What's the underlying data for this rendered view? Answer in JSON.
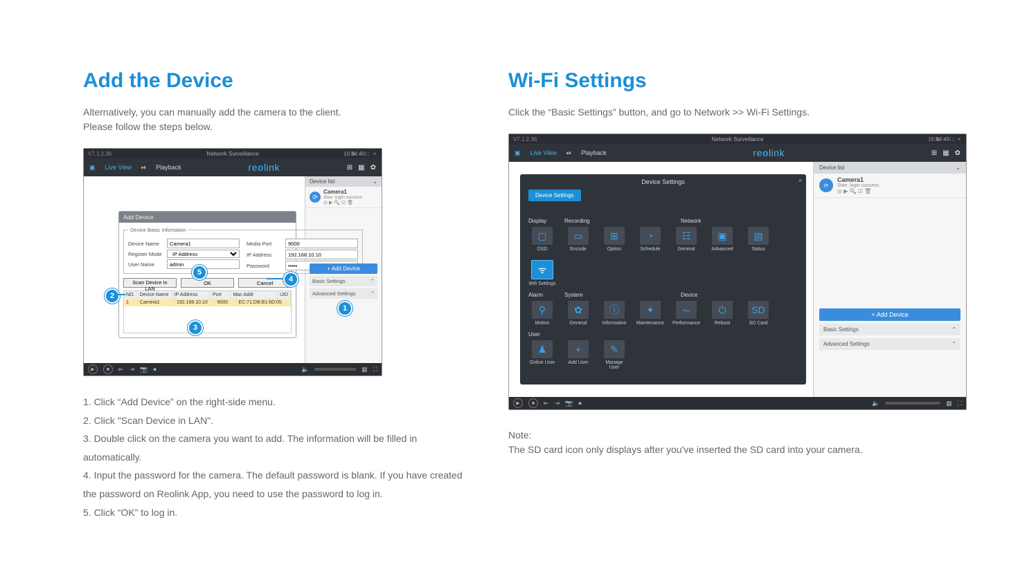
{
  "accent_color": "#1c8fd6",
  "left": {
    "heading": "Add the Device",
    "lead": "Alternatively, you can manually add the camera to the client.\nPlease follow the steps below.",
    "app": {
      "version": "V7.1.2.36",
      "title": "Network Surveillance",
      "time": "16:54:49",
      "menu_live": "Live View",
      "menu_playback": "Playback",
      "logo": "reolink",
      "sidebar": {
        "header": "Device list",
        "camera": {
          "name": "Camera1",
          "status": "Stae: login success"
        },
        "add_btn": "+  Add Device",
        "basic": "Basic Settings",
        "advanced": "Advanced Settings"
      },
      "dialog": {
        "title": "Add Device",
        "legend": "Device Basic Infomation",
        "device_name_lbl": "Device Name",
        "device_name": "Camera1",
        "register_lbl": "Register Mode",
        "register": "IP Address",
        "user_lbl": "User Name",
        "user": "admin",
        "media_lbl": "Media Port",
        "media": "9000",
        "ip_lbl": "IP Address",
        "ip": "192.168.10.10",
        "pwd_lbl": "Password",
        "pwd": "•••••",
        "scan_btn": "Scan Device In LAN",
        "ok_btn": "OK",
        "cancel_btn": "Cancel",
        "table": {
          "headers": [
            "NO.",
            "Device Name",
            "IP Address",
            "Port",
            "Mac Addr",
            "UID"
          ],
          "row": [
            "1",
            "Camera1",
            "192.168.10.10",
            "9000",
            "EC:71:DB:B1:6D:05",
            ""
          ]
        }
      }
    },
    "markers": {
      "1": "1",
      "2": "2",
      "3": "3",
      "4": "4",
      "5": "5"
    },
    "steps": [
      "1. Click “Add Device” on the right-side menu.",
      "2. Click \"Scan Device in LAN\".",
      "3. Double click on the camera you want to add. The information will be filled in automatically.",
      "4. Input the password for the camera. The default password is blank. If you have created",
      "the password on Reolink App, you need to use the password to log in.",
      "5. Click “OK” to log in."
    ]
  },
  "right": {
    "heading": "Wi-Fi Settings",
    "lead": "Click the “Basic Settings” button, and go to Network >> Wi-Fi Settings.",
    "app": {
      "version": "V7.1.2.36",
      "title": "Network Surveillance",
      "time": "16:54:49",
      "menu_live": "Live View",
      "menu_playback": "Playback",
      "logo": "reolink",
      "sidebar": {
        "header": "Device list",
        "camera": {
          "name": "Camera1",
          "status": "Stae: login success"
        },
        "add_btn": "+  Add Device",
        "basic": "Basic Settings",
        "advanced": "Advanced Settings"
      },
      "modal": {
        "title": "Device Settings",
        "tab": "Device Settings",
        "groups": [
          {
            "label_a": "Display",
            "label_b": "Recording",
            "label_c": "Network",
            "items": [
              {
                "i": "▢",
                "t": "OSD"
              },
              {
                "i": "▭",
                "t": "Encode"
              },
              {
                "i": "⊞",
                "t": "Option"
              },
              {
                "i": "◔",
                "t": "Schedule"
              },
              {
                "i": "☷",
                "t": "General"
              },
              {
                "i": "▣",
                "t": "Advanced"
              },
              {
                "i": "▤",
                "t": "Status"
              },
              {
                "i": "ᯤ",
                "t": "Wifi Settings",
                "sel": true
              }
            ]
          },
          {
            "label_a": "Alarm",
            "label_b": "System",
            "label_c": "Device",
            "items": [
              {
                "i": "⚲",
                "t": "Motion"
              },
              {
                "i": "✿",
                "t": "General"
              },
              {
                "i": "ⓘ",
                "t": "Information"
              },
              {
                "i": "✦",
                "t": "Maintenance"
              },
              {
                "i": "⏦",
                "t": "Performance"
              },
              {
                "i": "⏻",
                "t": "Reboot"
              },
              {
                "i": "SD",
                "t": "SD Card"
              }
            ]
          },
          {
            "label_a": "User",
            "items": [
              {
                "i": "♟",
                "t": "Online User"
              },
              {
                "i": "+",
                "t": "Add User"
              },
              {
                "i": "✎",
                "t": "Manage User"
              }
            ]
          }
        ]
      }
    },
    "note_label": "Note:",
    "note": "The SD card icon only displays after you've inserted the SD card into your camera."
  }
}
